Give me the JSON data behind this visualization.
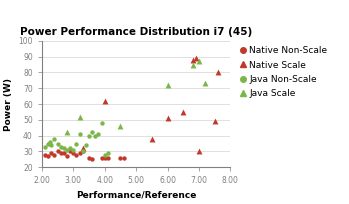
{
  "title": "Power Performance Distribution i7 (45)",
  "xlabel": "Performance/Reference",
  "ylabel": "Power (W)",
  "xlim": [
    2.0,
    8.0
  ],
  "ylim": [
    20,
    100
  ],
  "xticks": [
    2.0,
    3.0,
    4.0,
    5.0,
    6.0,
    7.0,
    8.0
  ],
  "yticks": [
    20,
    30,
    40,
    50,
    60,
    70,
    80,
    90,
    100
  ],
  "xtick_labels": [
    "2.00",
    "3.00",
    "4.00",
    "5.00",
    "6.00",
    "7.00",
    "8.00"
  ],
  "ytick_labels": [
    "20",
    "30",
    "40",
    "50",
    "60",
    "70",
    "80",
    "90",
    "100"
  ],
  "native_non_scale": {
    "x": [
      2.1,
      2.2,
      2.3,
      2.4,
      2.5,
      2.6,
      2.7,
      2.8,
      2.9,
      3.0,
      3.1,
      3.2,
      3.3,
      3.5,
      3.6,
      3.9,
      4.0,
      4.1,
      4.5,
      4.6
    ],
    "y": [
      28,
      27,
      29,
      28,
      30,
      29,
      29,
      27,
      30,
      29,
      28,
      29,
      30,
      26,
      25,
      26,
      26,
      26,
      26,
      26
    ],
    "color": "#c0392b",
    "marker": "o",
    "size": 10
  },
  "native_scale": {
    "x": [
      3.3,
      4.0,
      5.5,
      6.0,
      6.5,
      6.8,
      6.9,
      7.0,
      7.5,
      7.6
    ],
    "y": [
      32,
      62,
      38,
      51,
      55,
      88,
      89,
      30,
      49,
      80
    ],
    "color": "#c0392b",
    "marker": "^",
    "size": 18
  },
  "java_non_scale": {
    "x": [
      2.1,
      2.2,
      2.25,
      2.3,
      2.4,
      2.5,
      2.6,
      2.7,
      2.8,
      2.9,
      3.0,
      3.1,
      3.2,
      3.3,
      3.4,
      3.5,
      3.6,
      3.7,
      3.8,
      3.9,
      4.0,
      4.1
    ],
    "y": [
      33,
      35,
      36,
      34,
      38,
      35,
      33,
      32,
      31,
      32,
      31,
      35,
      41,
      30,
      34,
      40,
      42,
      40,
      41,
      48,
      28,
      29
    ],
    "color": "#7ab648",
    "marker": "o",
    "size": 10
  },
  "java_scale": {
    "x": [
      2.8,
      3.2,
      4.5,
      6.0,
      6.8,
      7.0,
      7.2
    ],
    "y": [
      42,
      52,
      46,
      72,
      85,
      87,
      73
    ],
    "color": "#7ab648",
    "marker": "^",
    "size": 18
  },
  "legend": {
    "native_non_scale_label": "Native Non-Scale",
    "native_scale_label": "Native Scale",
    "java_non_scale_label": "Java Non-Scale",
    "java_scale_label": "Java Scale",
    "fontsize": 6.5
  },
  "figsize": [
    3.49,
    2.04
  ],
  "dpi": 100
}
